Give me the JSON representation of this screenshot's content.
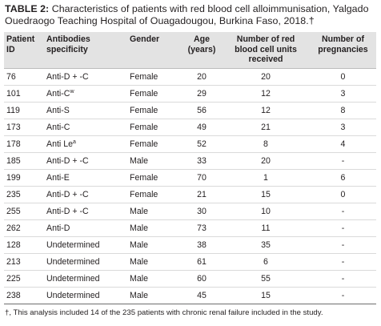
{
  "caption": {
    "lead": "TABLE 2:",
    "text": " Characteristics of patients with red blood cell alloimmunisation, Yalgado Ouedraogo Teaching Hospital of Ouagadougou, Burkina Faso, 2018.†"
  },
  "headers": [
    "Patient ID",
    "Antibodies specificity",
    "Gender",
    "Age (years)",
    "Number of red blood cell units received",
    "Number of pregnancies"
  ],
  "rows": [
    {
      "id": "76",
      "ab": "Anti-D + -C",
      "sup": "",
      "gender": "Female",
      "age": "20",
      "units": "20",
      "preg": "0"
    },
    {
      "id": "101",
      "ab": "Anti-C",
      "sup": "w",
      "gender": "Female",
      "age": "29",
      "units": "12",
      "preg": "3"
    },
    {
      "id": "119",
      "ab": "Anti-S",
      "sup": "",
      "gender": "Female",
      "age": "56",
      "units": "12",
      "preg": "8"
    },
    {
      "id": "173",
      "ab": "Anti-C",
      "sup": "",
      "gender": "Female",
      "age": "49",
      "units": "21",
      "preg": "3"
    },
    {
      "id": "178",
      "ab": "Anti Le",
      "sup": "a",
      "gender": "Female",
      "age": "52",
      "units": "8",
      "preg": "4"
    },
    {
      "id": "185",
      "ab": "Anti-D + -C",
      "sup": "",
      "gender": "Male",
      "age": "33",
      "units": "20",
      "preg": "-"
    },
    {
      "id": "199",
      "ab": "Anti-E",
      "sup": "",
      "gender": "Female",
      "age": "70",
      "units": "1",
      "preg": "6"
    },
    {
      "id": "235",
      "ab": "Anti-D + -C",
      "sup": "",
      "gender": "Female",
      "age": "21",
      "units": "15",
      "preg": "0"
    },
    {
      "id": "255",
      "ab": "Anti-D + -C",
      "sup": "",
      "gender": "Male",
      "age": "30",
      "units": "10",
      "preg": "-"
    },
    {
      "id": "262",
      "ab": "Anti-D",
      "sup": "",
      "gender": "Male",
      "age": "73",
      "units": "11",
      "preg": "-"
    },
    {
      "id": "128",
      "ab": "Undetermined",
      "sup": "",
      "gender": "Male",
      "age": "38",
      "units": "35",
      "preg": "-"
    },
    {
      "id": "213",
      "ab": "Undetermined",
      "sup": "",
      "gender": "Male",
      "age": "61",
      "units": "6",
      "preg": "-"
    },
    {
      "id": "225",
      "ab": "Undetermined",
      "sup": "",
      "gender": "Male",
      "age": "60",
      "units": "55",
      "preg": "-"
    },
    {
      "id": "238",
      "ab": "Undetermined",
      "sup": "",
      "gender": "Male",
      "age": "45",
      "units": "15",
      "preg": "-"
    }
  ],
  "footnote": "†, This analysis included 14 of the 235 patients with chronic renal failure included in the study."
}
